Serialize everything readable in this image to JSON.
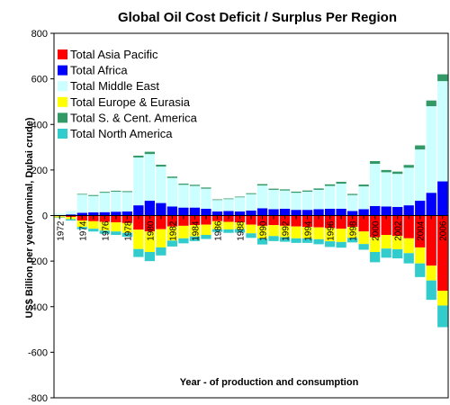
{
  "chart_data": {
    "type": "bar",
    "stacked": true,
    "title": "Global Oil Cost Deficit / Surplus Per Region",
    "ylabel": "US$ Billion per year(nominal, Dubai crude)",
    "xlabel": "Year - of production and consumption",
    "ylim": [
      -800,
      800
    ],
    "y_ticks": [
      800,
      600,
      400,
      200,
      0,
      -200,
      -400,
      -600,
      -800
    ],
    "x": [
      1972,
      1973,
      1974,
      1975,
      1976,
      1977,
      1978,
      1979,
      1980,
      1981,
      1982,
      1983,
      1984,
      1985,
      1986,
      1987,
      1988,
      1989,
      1990,
      1991,
      1992,
      1993,
      1994,
      1995,
      1996,
      1997,
      1998,
      1999,
      2000,
      2001,
      2002,
      2003,
      2004,
      2005,
      2006
    ],
    "x_tick_labels": [
      "1972",
      "1974",
      "1976",
      "1978",
      "1980",
      "1982",
      "1984",
      "1986",
      "1988",
      "1990",
      "1992",
      "1994",
      "1996",
      "1998",
      "2000",
      "2002",
      "2004",
      "2006"
    ],
    "legend_position": "top-left",
    "series": [
      {
        "name": "Total Asia Pacific",
        "color": "#ff0000",
        "values": [
          -3,
          -6,
          -22,
          -25,
          -28,
          -30,
          -33,
          -62,
          -70,
          -60,
          -48,
          -45,
          -42,
          -40,
          -25,
          -28,
          -30,
          -40,
          -45,
          -42,
          -45,
          -48,
          -50,
          -52,
          -55,
          -58,
          -50,
          -70,
          -95,
          -85,
          -90,
          -100,
          -140,
          -220,
          -330
        ]
      },
      {
        "name": "Total Africa",
        "color": "#0000ff",
        "values": [
          2,
          5,
          12,
          14,
          15,
          17,
          18,
          45,
          65,
          55,
          40,
          35,
          35,
          30,
          18,
          20,
          18,
          22,
          32,
          28,
          30,
          25,
          25,
          28,
          30,
          30,
          20,
          28,
          42,
          40,
          38,
          45,
          65,
          100,
          150
        ]
      },
      {
        "name": "Total Middle East",
        "color": "#ccffff",
        "values": [
          7,
          15,
          80,
          72,
          85,
          88,
          85,
          210,
          205,
          160,
          125,
          100,
          95,
          88,
          50,
          52,
          62,
          72,
          100,
          85,
          80,
          75,
          80,
          85,
          100,
          110,
          70,
          100,
          185,
          150,
          145,
          165,
          225,
          380,
          440
        ]
      },
      {
        "name": "Total Europe & Eurasia",
        "color": "#ffff00",
        "values": [
          -5,
          -10,
          -28,
          -33,
          -38,
          -40,
          -43,
          -85,
          -90,
          -80,
          -62,
          -55,
          -50,
          -45,
          -35,
          -33,
          -30,
          -38,
          -55,
          -48,
          -50,
          -52,
          -50,
          -52,
          -58,
          -58,
          -48,
          -55,
          -65,
          -60,
          -58,
          -65,
          -70,
          -65,
          -65
        ]
      },
      {
        "name": "Total S. & Cent. America",
        "color": "#339966",
        "values": [
          0,
          0,
          3,
          4,
          4,
          4,
          4,
          8,
          10,
          8,
          6,
          5,
          5,
          5,
          3,
          3,
          3,
          4,
          6,
          5,
          5,
          5,
          5,
          6,
          7,
          8,
          5,
          8,
          12,
          10,
          10,
          12,
          18,
          25,
          30
        ]
      },
      {
        "name": "Total North America",
        "color": "#33cccc",
        "values": [
          -2,
          -6,
          -10,
          -12,
          -14,
          -15,
          -17,
          -35,
          -40,
          -35,
          -26,
          -22,
          -20,
          -18,
          -12,
          -15,
          -15,
          -20,
          -27,
          -22,
          -20,
          -20,
          -20,
          -22,
          -25,
          -25,
          -20,
          -25,
          -45,
          -40,
          -40,
          -45,
          -60,
          -85,
          -95
        ]
      }
    ]
  }
}
